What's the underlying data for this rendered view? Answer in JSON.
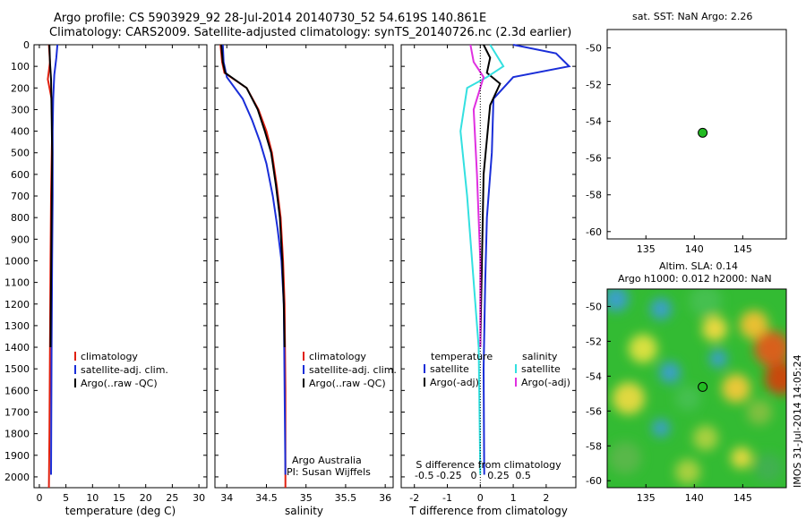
{
  "header": {
    "line1": "Argo profile: CS 5903929_92 28-Jul-2014 20140730_52 54.619S 140.861E",
    "line2": "Climatology: CARS2009. Satellite-adjusted climatology: synTS_20140726.nc (2.3d earlier)"
  },
  "colors": {
    "climatology": "#e02010",
    "satellite": "#1a2ed8",
    "argo": "#000000",
    "salinity_satellite": "#33e0e0",
    "salinity_argo": "#e030e0",
    "marker": "#22bb22"
  },
  "depth_ticks": [
    "0",
    "100",
    "200",
    "300",
    "400",
    "500",
    "600",
    "700",
    "800",
    "900",
    "1000",
    "1100",
    "1200",
    "1300",
    "1400",
    "1500",
    "1600",
    "1700",
    "1800",
    "1900",
    "2000"
  ],
  "legend_main": [
    "climatology",
    "satellite-adj. clim.",
    "Argo(..raw -QC)"
  ],
  "credit": {
    "line1": "Argo Australia",
    "line2": "PI: Susan Wijffels"
  },
  "diff_legend": {
    "temperature_title": "temperature",
    "salinity_title": "salinity",
    "items_left": [
      "satellite",
      "Argo(-adj)"
    ],
    "items_right": [
      "satellite",
      "Argo(-adj)"
    ]
  },
  "sst_label": "sat. SST: NaN Argo: 2.26",
  "sla_label1": "Altim. SLA: 0.14",
  "sla_label2": "Argo h1000: 0.012 h2000: NaN",
  "watermark": "IMOS 31-Jul-2014 14:05:24",
  "chart_data": [
    {
      "type": "line",
      "xlabel": "temperature (deg C)",
      "ylabel": "",
      "xlim": [
        -1,
        31.5
      ],
      "ylim": [
        2050,
        0
      ],
      "xticks": [
        "0",
        "5",
        "10",
        "15",
        "20",
        "25",
        "30"
      ],
      "series": [
        {
          "name": "climatology",
          "x": [
            1.8,
            2.0,
            1.6,
            2.3,
            2.4,
            2.2,
            2.1,
            2.0,
            1.9,
            1.8
          ],
          "y": [
            0,
            80,
            160,
            250,
            400,
            700,
            1000,
            1400,
            1800,
            2050
          ]
        },
        {
          "name": "satellite-adj. clim.",
          "x": [
            3.4,
            3.2,
            2.8,
            2.6,
            2.5,
            2.5,
            2.4,
            2.3,
            2.2
          ],
          "y": [
            0,
            60,
            140,
            250,
            400,
            700,
            1000,
            1400,
            1990
          ]
        },
        {
          "name": "Argo(..raw -QC)",
          "x": [
            1.9,
            2.0,
            2.2,
            2.3,
            2.4,
            2.3,
            2.2,
            2.1
          ],
          "y": [
            0,
            80,
            160,
            300,
            500,
            800,
            1100,
            1400
          ]
        }
      ]
    },
    {
      "type": "line",
      "xlabel": "salinity",
      "ylabel": "",
      "xlim": [
        33.85,
        36.1
      ],
      "ylim": [
        2050,
        0
      ],
      "xticks": [
        "34",
        "34.5",
        "35",
        "35.5",
        "36"
      ],
      "series": [
        {
          "name": "climatology",
          "x": [
            33.92,
            33.94,
            33.97,
            34.25,
            34.4,
            34.5,
            34.57,
            34.63,
            34.68,
            34.71,
            34.73,
            34.74,
            34.74
          ],
          "y": [
            0,
            80,
            130,
            200,
            300,
            400,
            500,
            650,
            800,
            1000,
            1200,
            1600,
            2050
          ]
        },
        {
          "name": "satellite-adj. clim.",
          "x": [
            33.95,
            33.96,
            34.0,
            34.2,
            34.32,
            34.42,
            34.5,
            34.58,
            34.64,
            34.69,
            34.72,
            34.73,
            34.74
          ],
          "y": [
            0,
            80,
            150,
            250,
            350,
            450,
            550,
            700,
            850,
            1000,
            1200,
            1600,
            1990
          ]
        },
        {
          "name": "Argo(..raw -QC)",
          "x": [
            33.93,
            33.95,
            33.98,
            34.25,
            34.39,
            34.48,
            34.56,
            34.62,
            34.67,
            34.7,
            34.72,
            34.73
          ],
          "y": [
            0,
            80,
            130,
            200,
            300,
            400,
            500,
            650,
            800,
            1000,
            1200,
            1400
          ]
        }
      ]
    },
    {
      "type": "line",
      "xlabel": "T difference from climatology",
      "ylabel": "",
      "title_bottom": "S difference from climatology",
      "xlim": [
        -2.4,
        2.9
      ],
      "ylim": [
        2050,
        0
      ],
      "xticks": [
        "-2",
        "-1",
        "0",
        "1",
        "2"
      ],
      "top_xticks": [
        "-0.5",
        "-0.25",
        "0",
        "0.25",
        "0.5"
      ],
      "series": [
        {
          "name": "temperature satellite",
          "x": [
            1.0,
            2.3,
            2.7,
            1.0,
            0.4,
            0.35,
            0.2,
            0.15,
            0.1,
            0.12
          ],
          "y": [
            0,
            40,
            100,
            150,
            250,
            500,
            800,
            1100,
            1500,
            1990
          ]
        },
        {
          "name": "temperature Argo(-adj)",
          "x": [
            0.1,
            0.3,
            0.2,
            0.6,
            0.3,
            0.1,
            0.0
          ],
          "y": [
            0,
            60,
            130,
            180,
            280,
            600,
            1400
          ]
        },
        {
          "name": "salinity satellite",
          "x": [
            0.3,
            0.7,
            0.2,
            -0.4,
            -0.6,
            -0.4,
            -0.05,
            0.0
          ],
          "y": [
            0,
            100,
            150,
            200,
            400,
            700,
            1400,
            1990
          ]
        },
        {
          "name": "salinity Argo(-adj)",
          "x": [
            -0.3,
            -0.2,
            0.1,
            -0.2,
            -0.1,
            0.0,
            0.0
          ],
          "y": [
            0,
            80,
            150,
            300,
            600,
            1000,
            1400
          ]
        }
      ]
    },
    {
      "type": "scatter",
      "title": "sat. SST: NaN Argo: 2.26",
      "xlim": [
        131,
        149.5
      ],
      "ylim": [
        -60.4,
        -49
      ],
      "xticks": [
        "135",
        "140",
        "145"
      ],
      "yticks": [
        "-50",
        "-52",
        "-54",
        "-56",
        "-58",
        "-60"
      ],
      "points": [
        {
          "x": 140.861,
          "y": -54.619
        }
      ]
    },
    {
      "type": "heatmap",
      "title": "Altim. SLA: 0.14",
      "xlim": [
        131,
        149.5
      ],
      "ylim": [
        -60.4,
        -49
      ],
      "xticks": [
        "135",
        "140",
        "145"
      ],
      "yticks": [
        "-50",
        "-52",
        "-54",
        "-56",
        "-58",
        "-60"
      ],
      "points": [
        {
          "x": 140.861,
          "y": -54.619
        }
      ]
    }
  ]
}
